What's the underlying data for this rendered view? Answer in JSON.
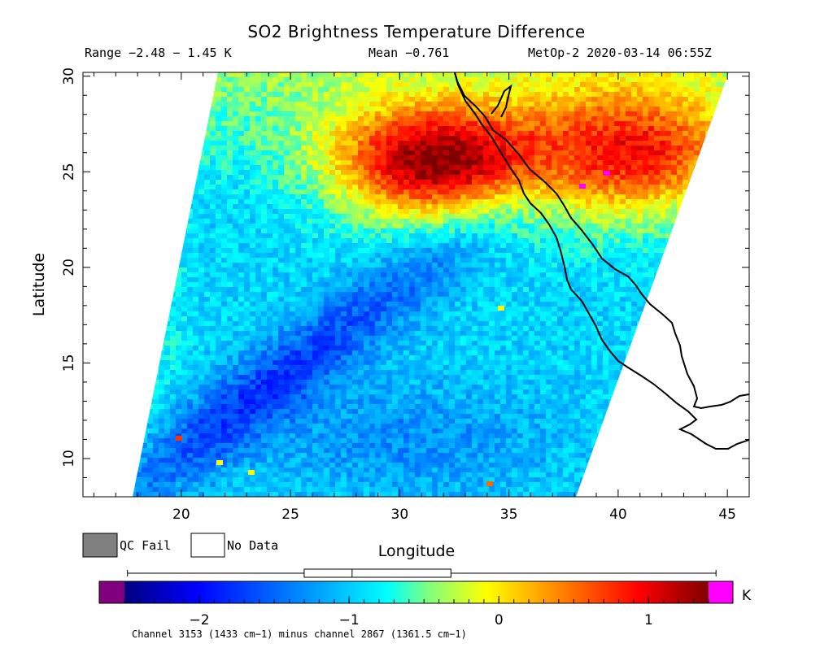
{
  "title": "SO2 Brightness Temperature Difference",
  "header": {
    "range": "Range −2.48 − 1.45 K",
    "mean": "Mean −0.761",
    "satellite_time": "MetOp-2 2020-03-14 06:55Z"
  },
  "axes": {
    "x_label": "Longitude",
    "y_label": "Latitude",
    "x_ticks": [
      "20",
      "25",
      "30",
      "35",
      "40",
      "45"
    ],
    "y_ticks": [
      "10",
      "15",
      "20",
      "25",
      "30"
    ],
    "x_range": [
      15.5,
      46
    ],
    "y_range": [
      8,
      30.2
    ]
  },
  "legend": {
    "qc_fail": "QC Fail",
    "no_data": "No Data",
    "qc_fail_color": "#808080",
    "no_data_color": "#ffffff"
  },
  "colorbar": {
    "unit": "K",
    "ticks": [
      "−2",
      "−1",
      "0",
      "1"
    ],
    "range": [
      -2.5,
      1.4
    ],
    "underflow_color": "#800080",
    "overflow_color": "#ff00ff",
    "boxplot": {
      "min": -2.48,
      "q1": -1.3,
      "median": -0.98,
      "q3": -0.32,
      "max": 1.45
    }
  },
  "footnote": "Channel 3153 (1433 cm−1) minus channel 2867 (1361.5 cm−1)"
}
